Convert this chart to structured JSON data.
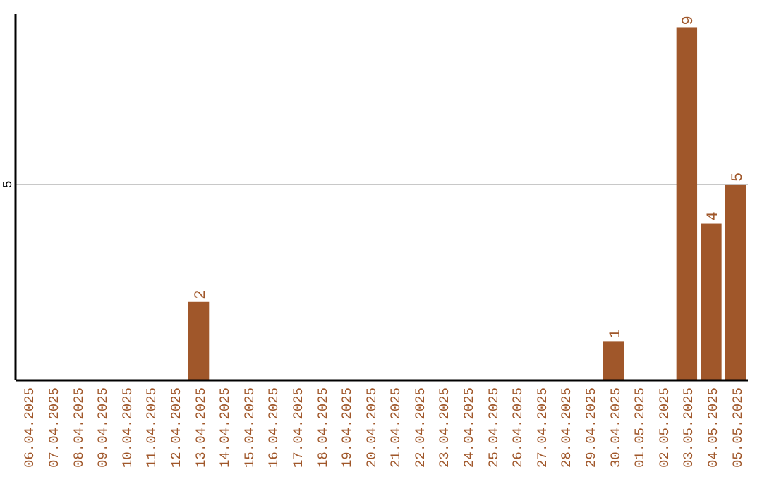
{
  "chart_data": {
    "type": "bar",
    "categories": [
      "06.04.2025",
      "07.04.2025",
      "08.04.2025",
      "09.04.2025",
      "10.04.2025",
      "11.04.2025",
      "12.04.2025",
      "13.04.2025",
      "14.04.2025",
      "15.04.2025",
      "16.04.2025",
      "17.04.2025",
      "18.04.2025",
      "19.04.2025",
      "20.04.2025",
      "21.04.2025",
      "22.04.2025",
      "23.04.2025",
      "24.04.2025",
      "25.04.2025",
      "26.04.2025",
      "27.04.2025",
      "28.04.2025",
      "29.04.2025",
      "30.04.2025",
      "01.05.2025",
      "02.05.2025",
      "03.05.2025",
      "04.05.2025",
      "05.05.2025"
    ],
    "values": [
      0,
      0,
      0,
      0,
      0,
      0,
      0,
      2,
      0,
      0,
      0,
      0,
      0,
      0,
      0,
      0,
      0,
      0,
      0,
      0,
      0,
      0,
      0,
      0,
      1,
      0,
      0,
      9,
      4,
      5
    ],
    "value_labels": [
      null,
      null,
      null,
      null,
      null,
      null,
      null,
      "2",
      null,
      null,
      null,
      null,
      null,
      null,
      null,
      null,
      null,
      null,
      null,
      null,
      null,
      null,
      null,
      null,
      "1",
      null,
      null,
      "9",
      "4",
      "5"
    ],
    "color": "#a0572a",
    "ylim": [
      0,
      9.35
    ],
    "yticks": [
      5
    ],
    "grid": "y"
  }
}
